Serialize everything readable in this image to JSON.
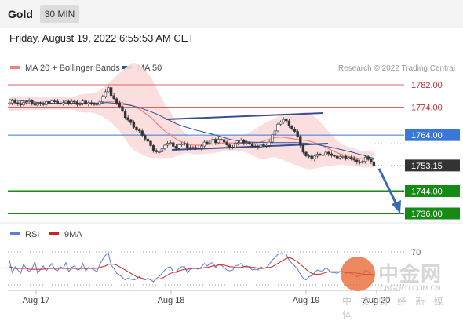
{
  "header": {
    "title": "Gold",
    "timeframe": "30 MIN"
  },
  "datetime": "Friday, August 19, 2022 6:55:53 AM CET",
  "legend": {
    "ma20_label": "MA 20 + Bollinger Bands",
    "ma50_label": "MA 50",
    "copyright": "Research © 2022 Trading Central",
    "rsi_label": "RSI",
    "rsi_ma_label": "9MA"
  },
  "colors": {
    "ma20": "#f08080",
    "ma50": "#2e4f8f",
    "bollinger": "#fbdcdc",
    "resistance": "#e06060",
    "support": "#158a15",
    "pivot": "#3a78d8",
    "last": "#333333",
    "arrow": "#3a68b8",
    "rsi": "#5a7be0",
    "rsi_ma": "#cc2222"
  },
  "chart_data": {
    "type": "candlestick",
    "x_labels": [
      "Aug 17",
      "Aug 18",
      "Aug 19",
      "Aug 20"
    ],
    "ylim": [
      1730,
      1786
    ],
    "levels": [
      {
        "label": "1782.00",
        "value": 1782.0,
        "kind": "resistance"
      },
      {
        "label": "1774.00",
        "value": 1774.0,
        "kind": "resistance"
      },
      {
        "label": "1764.00",
        "value": 1764.0,
        "kind": "pivot"
      },
      {
        "label": "1753.15",
        "value": 1753.15,
        "kind": "last"
      },
      {
        "label": "1744.00",
        "value": 1744.0,
        "kind": "support"
      },
      {
        "label": "1736.00",
        "value": 1736.0,
        "kind": "support"
      }
    ],
    "closes": [
      1775.5,
      1776.3,
      1775.6,
      1775.3,
      1774.8,
      1775.7,
      1775.9,
      1776.3,
      1775.4,
      1774.7,
      1775.4,
      1775.2,
      1774.9,
      1776.0,
      1775.5,
      1776.2,
      1776.1,
      1775.5,
      1775.2,
      1775.6,
      1776.1,
      1775.4,
      1776.1,
      1775.9,
      1774.9,
      1775.4,
      1776.2,
      1775.2,
      1775.6,
      1775.3,
      1774.9,
      1775.0,
      1775.9,
      1777.8,
      1779.5,
      1781.0,
      1778.1,
      1777.0,
      1775.5,
      1774.2,
      1772.6,
      1770.3,
      1769.4,
      1768.5,
      1766.8,
      1765.8,
      1765.5,
      1763.9,
      1762.6,
      1761.8,
      1760.3,
      1758.5,
      1758.0,
      1758.0,
      1759.1,
      1760.4,
      1761.1,
      1761.3,
      1760.0,
      1759.2,
      1760.6,
      1760.8,
      1761.0,
      1759.3,
      1759.6,
      1759.6,
      1759.4,
      1759.2,
      1760.1,
      1761.5,
      1761.0,
      1762.2,
      1762.5,
      1761.3,
      1762.5,
      1762.4,
      1761.5,
      1760.5,
      1759.7,
      1759.6,
      1761.1,
      1761.3,
      1762.1,
      1761.2,
      1761.3,
      1760.8,
      1760.1,
      1760.0,
      1759.7,
      1760.7,
      1760.3,
      1760.3,
      1761.5,
      1764.1,
      1765.5,
      1767.9,
      1768.6,
      1769.6,
      1769.1,
      1767.2,
      1766.2,
      1765.3,
      1763.6,
      1760.3,
      1757.9,
      1756.6,
      1756.5,
      1755.5,
      1756.5,
      1757.2,
      1757.0,
      1756.9,
      1757.9,
      1757.3,
      1756.7,
      1756.5,
      1755.8,
      1756.3,
      1756.4,
      1755.6,
      1756.0,
      1755.7,
      1755.1,
      1754.4,
      1754.2,
      1754.6,
      1756.1,
      1755.3,
      1754.5,
      1753.15
    ],
    "ma20": [
      1775.1,
      1775.2,
      1775.2,
      1775.2,
      1775.2,
      1775.2,
      1775.3,
      1775.3,
      1775.3,
      1775.3,
      1775.3,
      1775.3,
      1775.3,
      1775.4,
      1775.4,
      1775.4,
      1775.4,
      1775.4,
      1775.4,
      1775.4,
      1775.4,
      1775.4,
      1775.4,
      1775.4,
      1775.4,
      1775.4,
      1775.4,
      1775.4,
      1775.5,
      1775.5,
      1775.5,
      1775.5,
      1775.5,
      1775.7,
      1775.8,
      1775.9,
      1775.9,
      1775.9,
      1775.9,
      1775.8,
      1775.6,
      1775.3,
      1775.0,
      1774.7,
      1774.3,
      1773.8,
      1773.3,
      1772.6,
      1771.8,
      1771.1,
      1770.4,
      1769.4,
      1768.3,
      1767.3,
      1766.4,
      1765.5,
      1764.7,
      1764.1,
      1763.4,
      1762.6,
      1762.0,
      1761.6,
      1761.2,
      1760.8,
      1760.6,
      1760.4,
      1760.4,
      1760.4,
      1760.4,
      1760.5,
      1760.6,
      1760.7,
      1760.8,
      1760.9,
      1761.0,
      1761.1,
      1761.2,
      1761.2,
      1761.2,
      1761.2,
      1761.2,
      1761.2,
      1761.1,
      1761.1,
      1761.1,
      1761.1,
      1761.1,
      1761.2,
      1761.3,
      1761.5,
      1761.8,
      1762.2,
      1762.5,
      1762.9,
      1763.1,
      1763.2,
      1763.3,
      1763.2,
      1763.0,
      1762.9,
      1762.8,
      1762.6,
      1762.5,
      1762.3,
      1762.2,
      1762.1,
      1761.9,
      1761.6,
      1761.3,
      1761.0,
      1760.6,
      1760.1,
      1759.6,
      1759.1,
      1758.6,
      1758.1,
      1757.7,
      1757.3,
      1757.0,
      1756.7,
      1756.4,
      1756.2,
      1756.0,
      1755.8,
      1755.6,
      1755.5,
      1755.4,
      1755.4,
      1755.3,
      1755.2
    ],
    "ma50": [
      1776.7,
      1776.6,
      1776.5,
      1776.4,
      1776.3,
      1776.2,
      1776.1,
      1776.0,
      1775.9,
      1775.8,
      1775.7,
      1775.6,
      1775.5,
      1775.4,
      1775.4,
      1775.3,
      1775.3,
      1775.3,
      1775.3,
      1775.3,
      1775.3,
      1775.3,
      1775.4,
      1775.4,
      1775.4,
      1775.4,
      1775.4,
      1775.4,
      1775.4,
      1775.4,
      1775.4,
      1775.4,
      1775.5,
      1775.5,
      1775.6,
      1775.6,
      1775.5,
      1775.4,
      1775.3,
      1775.2,
      1775.1,
      1774.9,
      1774.8,
      1774.6,
      1774.4,
      1774.1,
      1773.8,
      1773.5,
      1773.1,
      1772.8,
      1772.4,
      1772.0,
      1771.6,
      1771.1,
      1770.6,
      1770.1,
      1769.6,
      1769.1,
      1768.6,
      1768.1,
      1767.7,
      1767.3,
      1767.0,
      1766.7,
      1766.4,
      1766.1,
      1765.8,
      1765.5,
      1765.3,
      1765.0,
      1764.8,
      1764.5,
      1764.3,
      1764.0,
      1763.7,
      1763.4,
      1763.1,
      1762.8,
      1762.5,
      1762.3,
      1762.1,
      1761.9,
      1761.8,
      1761.7,
      1761.6,
      1761.5,
      1761.5,
      1761.4,
      1761.4,
      1761.4,
      1761.4,
      1761.3,
      1761.3,
      1761.3,
      1761.3,
      1761.3,
      1761.3,
      1761.3,
      1761.3,
      1761.3,
      1761.3,
      1761.3,
      1761.3,
      1761.2,
      1761.2,
      1761.1,
      1761.0,
      1760.9,
      1760.8,
      1760.6,
      1760.4,
      1760.2,
      1760.0,
      1759.8,
      1759.6,
      1759.4,
      1759.2,
      1758.9,
      1758.7,
      1758.4,
      1758.2,
      1758.0,
      1757.7,
      1757.4,
      1757.1,
      1756.9,
      1756.6,
      1756.3,
      1756.0,
      1755.7
    ],
    "channels": [
      {
        "from": [
          1761.0,
          1770.0
        ],
        "to": [
          1761.2,
          1771.0
        ]
      },
      {
        "from": [
          1758.3,
          1758.9
        ],
        "to": [
          1759.6,
          1760.1
        ]
      }
    ],
    "arrow": {
      "from": 1753.15,
      "to": 1736.0
    },
    "rsi": {
      "level_label": "70",
      "values": [
        60,
        45,
        52,
        48,
        44,
        55,
        50,
        46,
        49,
        58,
        44,
        49,
        53,
        47,
        51,
        56,
        49,
        47,
        52,
        50,
        57,
        46,
        51,
        53,
        48,
        49,
        56,
        47,
        51,
        50,
        48,
        46,
        55,
        61,
        66,
        69,
        54,
        50,
        44,
        42,
        39,
        36,
        38,
        37,
        36,
        37,
        40,
        37,
        36,
        38,
        36,
        34,
        38,
        40,
        44,
        48,
        51,
        52,
        46,
        45,
        50,
        52,
        52,
        45,
        49,
        50,
        50,
        49,
        52,
        56,
        53,
        56,
        57,
        51,
        55,
        54,
        51,
        48,
        47,
        48,
        53,
        54,
        56,
        52,
        53,
        51,
        48,
        49,
        48,
        52,
        50,
        51,
        55,
        60,
        63,
        67,
        68,
        68,
        67,
        60,
        56,
        53,
        49,
        43,
        38,
        36,
        40,
        41,
        45,
        48,
        47,
        47,
        51,
        48,
        45,
        45,
        44,
        46,
        46,
        44,
        45,
        44,
        42,
        40,
        41,
        42,
        48,
        46,
        43,
        40
      ],
      "ma": [
        52,
        51,
        50,
        50,
        50,
        50,
        50,
        49,
        49,
        49,
        49,
        49,
        49,
        50,
        50,
        50,
        50,
        50,
        50,
        50,
        50,
        50,
        50,
        50,
        50,
        50,
        50,
        50,
        50,
        50,
        50,
        50,
        51,
        52,
        53,
        55,
        55,
        55,
        54,
        52,
        50,
        48,
        46,
        44,
        42,
        40,
        39,
        38,
        37,
        37,
        37,
        37,
        37,
        37,
        38,
        40,
        42,
        44,
        45,
        46,
        47,
        48,
        49,
        49,
        50,
        50,
        50,
        50,
        50,
        51,
        51,
        52,
        53,
        53,
        54,
        54,
        54,
        53,
        52,
        52,
        51,
        51,
        51,
        52,
        52,
        52,
        51,
        51,
        50,
        50,
        50,
        51,
        51,
        52,
        54,
        56,
        58,
        60,
        62,
        63,
        62,
        60,
        58,
        55,
        52,
        49,
        46,
        44,
        43,
        43,
        43,
        44,
        45,
        46,
        46,
        46,
        46,
        46,
        46,
        45,
        45,
        45,
        45,
        44,
        44,
        43,
        43,
        43,
        43,
        42
      ]
    }
  }
}
